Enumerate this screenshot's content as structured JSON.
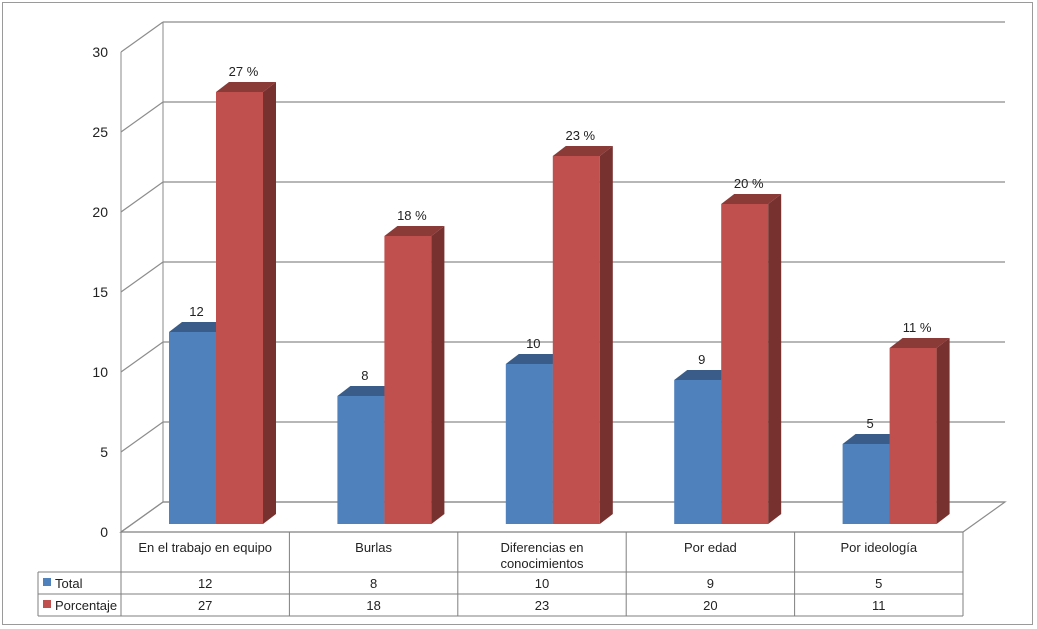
{
  "chart_data": {
    "type": "bar",
    "categories": [
      [
        "En el trabajo en equipo"
      ],
      [
        "Burlas"
      ],
      [
        "Diferencias en",
        "conocimientos"
      ],
      [
        "Por edad"
      ],
      [
        "Por ideología"
      ]
    ],
    "series": [
      {
        "name": "Total",
        "color": "#4f81bd",
        "values": [
          12,
          8,
          10,
          9,
          5
        ],
        "labels": [
          "12",
          "8",
          "10",
          "9",
          "5"
        ]
      },
      {
        "name": "Porcentaje",
        "color": "#c0504d",
        "values": [
          27,
          18,
          23,
          20,
          11
        ],
        "labels": [
          "27 %",
          "18 %",
          "23 %",
          "20 %",
          "11 %"
        ]
      }
    ],
    "ylim": [
      0,
      30
    ],
    "yticks": [
      0,
      5,
      10,
      15,
      20,
      25,
      30
    ],
    "grid": true,
    "legend": "data-table",
    "data_table": {
      "rows": [
        {
          "name": "Total",
          "values": [
            "12",
            "8",
            "10",
            "9",
            "5"
          ]
        },
        {
          "name": "Porcentaje",
          "values": [
            "27",
            "18",
            "23",
            "20",
            "11"
          ]
        }
      ]
    }
  }
}
